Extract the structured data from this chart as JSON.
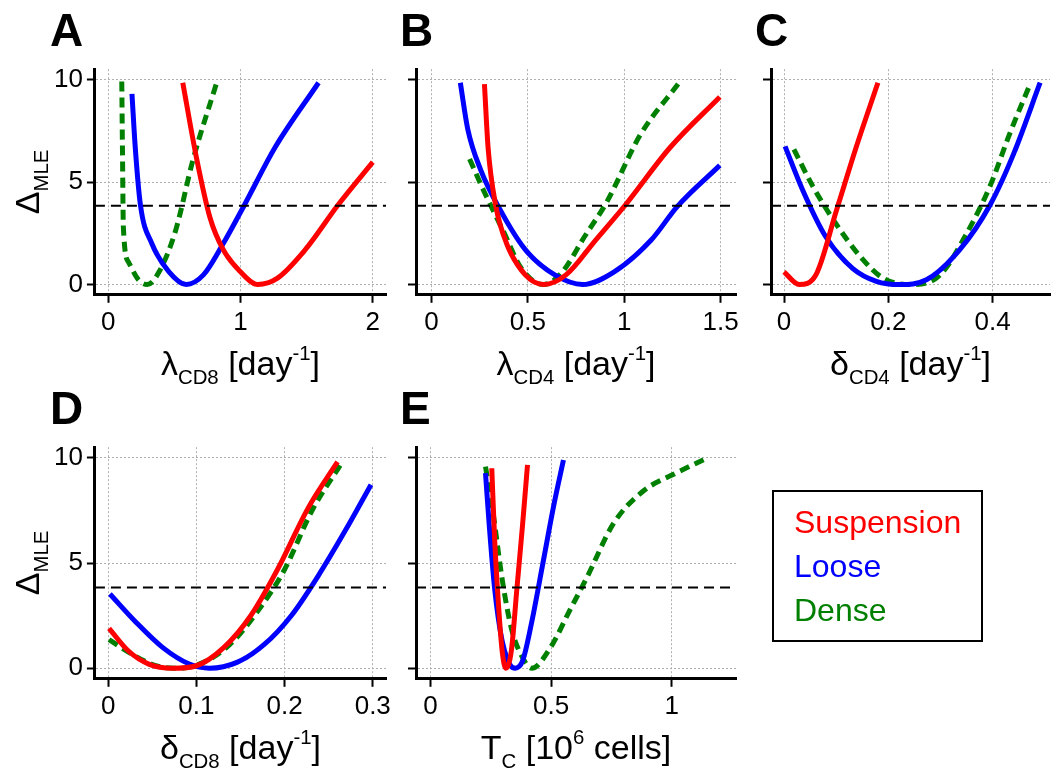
{
  "chart_data": [
    {
      "type": "line",
      "title": "A",
      "xlabel": "λ$_{CD8}$ [day$^{-1}$]",
      "ylabel": "Δ$_{MLE}$",
      "xlim": [
        -0.1,
        2.1
      ],
      "xticks": [
        0,
        1,
        2
      ],
      "ylim": [
        -0.5,
        10.5
      ],
      "yticks": [
        0,
        5,
        10
      ],
      "grid": true,
      "ref_lines": [
        {
          "axis": "y",
          "value": 3.84,
          "color": "#000000",
          "line_style": "dashed"
        }
      ],
      "series": [
        {
          "color": "#ff0000",
          "line_style": "solid",
          "x": [
            0.564,
            0.667,
            0.77,
            0.87,
            1.0,
            1.13,
            1.28,
            1.49,
            1.74,
            2.0
          ],
          "values": [
            9.84,
            6.2,
            3.26,
            1.7,
            0.62,
            0,
            0.31,
            1.7,
            3.9,
            5.97
          ]
        },
        {
          "color": "#0000ff",
          "line_style": "solid",
          "x": [
            0.18,
            0.205,
            0.244,
            0.33,
            0.46,
            0.59,
            0.72,
            0.87,
            1.03,
            1.26,
            1.59
          ],
          "values": [
            9.3,
            6.67,
            3.88,
            2.0,
            0.62,
            0,
            0.47,
            2.0,
            3.88,
            6.67,
            9.84
          ]
        },
        {
          "color": "#008000",
          "line_style": "dashed",
          "x": [
            0.103,
            0.108,
            0.115,
            0.154,
            0.23,
            0.295,
            0.385,
            0.51,
            0.64,
            0.82
          ],
          "values": [
            9.9,
            6.67,
            2.8,
            1.09,
            0.23,
            0,
            0.62,
            2.64,
            6.05,
            9.84
          ]
        }
      ]
    },
    {
      "type": "line",
      "title": "B",
      "xlabel": "λ$_{CD4}$ [day$^{-1}$]",
      "xlim": [
        -0.08,
        1.58
      ],
      "xticks": [
        0,
        0.5,
        1,
        1.5
      ],
      "ylim": [
        -0.5,
        10.5
      ],
      "yticks": [
        0,
        5,
        10
      ],
      "grid": true,
      "tick_labels": "x",
      "ref_lines": [
        {
          "axis": "y",
          "value": 3.84,
          "color": "#000000",
          "line_style": "dashed"
        }
      ],
      "series": [
        {
          "color": "#ff0000",
          "line_style": "solid",
          "x": [
            0.275,
            0.294,
            0.333,
            0.39,
            0.487,
            0.583,
            0.698,
            0.852,
            1.006,
            1.237,
            1.496
          ],
          "values": [
            9.77,
            6.67,
            3.88,
            2.0,
            0.47,
            0,
            0.47,
            2.17,
            3.88,
            6.67,
            9.15
          ]
        },
        {
          "color": "#0000ff",
          "line_style": "solid",
          "x": [
            0.15,
            0.188,
            0.256,
            0.352,
            0.487,
            0.64,
            0.785,
            0.948,
            1.14,
            1.275,
            1.496
          ],
          "values": [
            9.84,
            7.6,
            5.58,
            3.72,
            1.7,
            0.47,
            0,
            0.62,
            2.17,
            3.8,
            5.81
          ]
        },
        {
          "color": "#008000",
          "line_style": "dashed",
          "x": [
            0.198,
            0.275,
            0.371,
            0.467,
            0.583,
            0.679,
            0.794,
            0.91,
            1.083,
            1.285
          ],
          "values": [
            6.12,
            4.5,
            2.64,
            0.78,
            0,
            0.62,
            2.33,
            4.03,
            7.29,
            9.84
          ]
        }
      ]
    },
    {
      "type": "line",
      "title": "C",
      "xlabel": "δ$_{CD4}$ [day$^{-1}$]",
      "xlim": [
        -0.025,
        0.51
      ],
      "xticks": [
        0,
        0.2,
        0.4
      ],
      "ylim": [
        -0.5,
        10.5
      ],
      "yticks": [
        0,
        5,
        10
      ],
      "grid": true,
      "tick_labels": "x",
      "ref_lines": [
        {
          "axis": "y",
          "value": 3.84,
          "color": "#000000",
          "line_style": "dashed"
        }
      ],
      "series": [
        {
          "color": "#ff0000",
          "line_style": "solid",
          "x": [
            0,
            0.029,
            0.061,
            0.1,
            0.138,
            0.18
          ],
          "values": [
            0.62,
            0,
            0.47,
            3.57,
            6.67,
            9.84
          ]
        },
        {
          "color": "#0000ff",
          "line_style": "solid",
          "x": [
            0.002,
            0.035,
            0.08,
            0.132,
            0.177,
            0.221,
            0.273,
            0.337,
            0.395,
            0.44,
            0.491
          ],
          "values": [
            6.74,
            4.65,
            2.33,
            0.78,
            0.16,
            0,
            0.23,
            1.7,
            3.88,
            6.36,
            9.84
          ]
        },
        {
          "color": "#008000",
          "line_style": "dashed",
          "x": [
            0.019,
            0.055,
            0.1,
            0.145,
            0.19,
            0.247,
            0.299,
            0.35,
            0.395,
            0.434,
            0.469
          ],
          "values": [
            6.59,
            4.8,
            2.95,
            1.4,
            0.31,
            0,
            0.47,
            2.48,
            4.8,
            7.44,
            9.6
          ]
        }
      ]
    },
    {
      "type": "line",
      "title": "D",
      "xlabel": "δ$_{CD8}$ [day$^{-1}$]",
      "ylabel": "Δ$_{MLE}$",
      "xlim": [
        -0.015,
        0.315
      ],
      "xticks": [
        0,
        0.1,
        0.2,
        0.3
      ],
      "ylim": [
        -0.5,
        10.5
      ],
      "yticks": [
        0,
        5,
        10
      ],
      "grid": true,
      "ref_lines": [
        {
          "axis": "y",
          "value": 3.84,
          "color": "#000000",
          "line_style": "dashed"
        }
      ],
      "series": [
        {
          "color": "#ff0000",
          "line_style": "solid",
          "x": [
            0.001,
            0.023,
            0.046,
            0.073,
            0.1,
            0.131,
            0.162,
            0.192,
            0.227,
            0.26
          ],
          "values": [
            1.9,
            0.82,
            0.2,
            0,
            0.12,
            0.98,
            2.52,
            4.69,
            7.63,
            9.8
          ]
        },
        {
          "color": "#0000ff",
          "line_style": "solid",
          "x": [
            0.002,
            0.031,
            0.062,
            0.092,
            0.115,
            0.146,
            0.177,
            0.208,
            0.238,
            0.269,
            0.298
          ],
          "values": [
            3.53,
            2.21,
            0.98,
            0.2,
            0,
            0.28,
            1.13,
            2.52,
            4.38,
            6.55,
            8.72
          ]
        },
        {
          "color": "#008000",
          "line_style": "dashed",
          "x": [
            0.001,
            0.027,
            0.054,
            0.081,
            0.108,
            0.138,
            0.169,
            0.2,
            0.231,
            0.263
          ],
          "values": [
            1.36,
            0.67,
            0.12,
            0,
            0.28,
            1.13,
            2.68,
            4.69,
            7.48,
            9.64
          ]
        }
      ]
    },
    {
      "type": "line",
      "title": "E",
      "xlabel": "T$_{C}$ [10$^{6}$ cells]",
      "xlim": [
        -0.06,
        1.266
      ],
      "xticks": [
        0,
        0.5,
        1
      ],
      "ylim": [
        -0.5,
        10.5
      ],
      "yticks": [
        0,
        5,
        10
      ],
      "grid": true,
      "tick_labels": "x",
      "legend": "right",
      "ref_lines": [
        {
          "axis": "y",
          "value": 3.84,
          "color": "#000000",
          "line_style": "dashed"
        }
      ],
      "series": [
        {
          "name": "Suspension",
          "color": "#ff0000",
          "line_style": "solid",
          "x": [
            0.254,
            0.266,
            0.282,
            0.297,
            0.312,
            0.335,
            0.358,
            0.382,
            0.402
          ],
          "values": [
            9.5,
            6.09,
            2.99,
            0.82,
            0,
            0.82,
            3.77,
            6.87,
            9.66
          ]
        },
        {
          "name": "Loose",
          "color": "#0000ff",
          "line_style": "solid",
          "x": [
            0.228,
            0.243,
            0.266,
            0.297,
            0.328,
            0.351,
            0.382,
            0.42,
            0.466,
            0.512,
            0.551
          ],
          "values": [
            9.27,
            6.87,
            3.77,
            1.29,
            0.2,
            0,
            0.36,
            2.22,
            5.0,
            7.8,
            9.89
          ]
        },
        {
          "name": "Dense",
          "color": "#008000",
          "line_style": "dashed",
          "x": [
            0.228,
            0.258,
            0.297,
            0.335,
            0.374,
            0.42,
            0.497,
            0.574,
            0.651,
            0.758,
            0.882,
            1.005,
            1.143
          ],
          "values": [
            9.58,
            7.49,
            4.23,
            1.9,
            0.67,
            0,
            0.98,
            2.68,
            4.38,
            6.87,
            8.42,
            9.2,
            9.97
          ]
        }
      ]
    }
  ]
}
